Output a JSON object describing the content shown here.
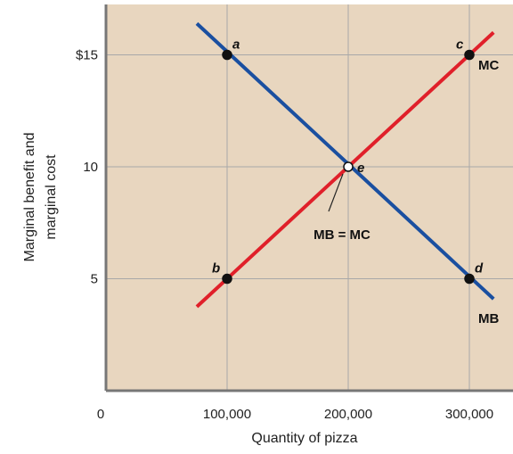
{
  "chart_data": {
    "type": "line",
    "xlabel": "Quantity of pizza",
    "ylabel_lines": [
      "Marginal benefit and",
      "marginal cost"
    ],
    "xlim": [
      0,
      330000
    ],
    "ylim": [
      0,
      17
    ],
    "x_ticks": [
      {
        "value": 0,
        "label": "0"
      },
      {
        "value": 100000,
        "label": "100,000"
      },
      {
        "value": 200000,
        "label": "200,000"
      },
      {
        "value": 300000,
        "label": "300,000"
      }
    ],
    "y_ticks": [
      {
        "value": 5,
        "label": "5"
      },
      {
        "value": 10,
        "label": "10"
      },
      {
        "value": 15,
        "label": "$15"
      }
    ],
    "series": [
      {
        "name": "MB",
        "color": "#1a4fa0",
        "x": [
          75000,
          320000
        ],
        "y": [
          16.4,
          4.1
        ]
      },
      {
        "name": "MC",
        "color": "#e0202a",
        "x": [
          75000,
          320000
        ],
        "y": [
          3.75,
          16.0
        ]
      }
    ],
    "points": [
      {
        "label": "a",
        "x": 100000,
        "y": 15,
        "fill": "#111111"
      },
      {
        "label": "b",
        "x": 100000,
        "y": 5,
        "fill": "#111111"
      },
      {
        "label": "c",
        "x": 300000,
        "y": 15,
        "fill": "#111111"
      },
      {
        "label": "d",
        "x": 300000,
        "y": 5,
        "fill": "#111111"
      },
      {
        "label": "e",
        "x": 200000,
        "y": 10,
        "fill": "#ffffff"
      }
    ],
    "annotation": {
      "text": "MB = MC",
      "x": 200000,
      "y": 10
    },
    "background_color": "#e8d6bf",
    "grid": true
  }
}
